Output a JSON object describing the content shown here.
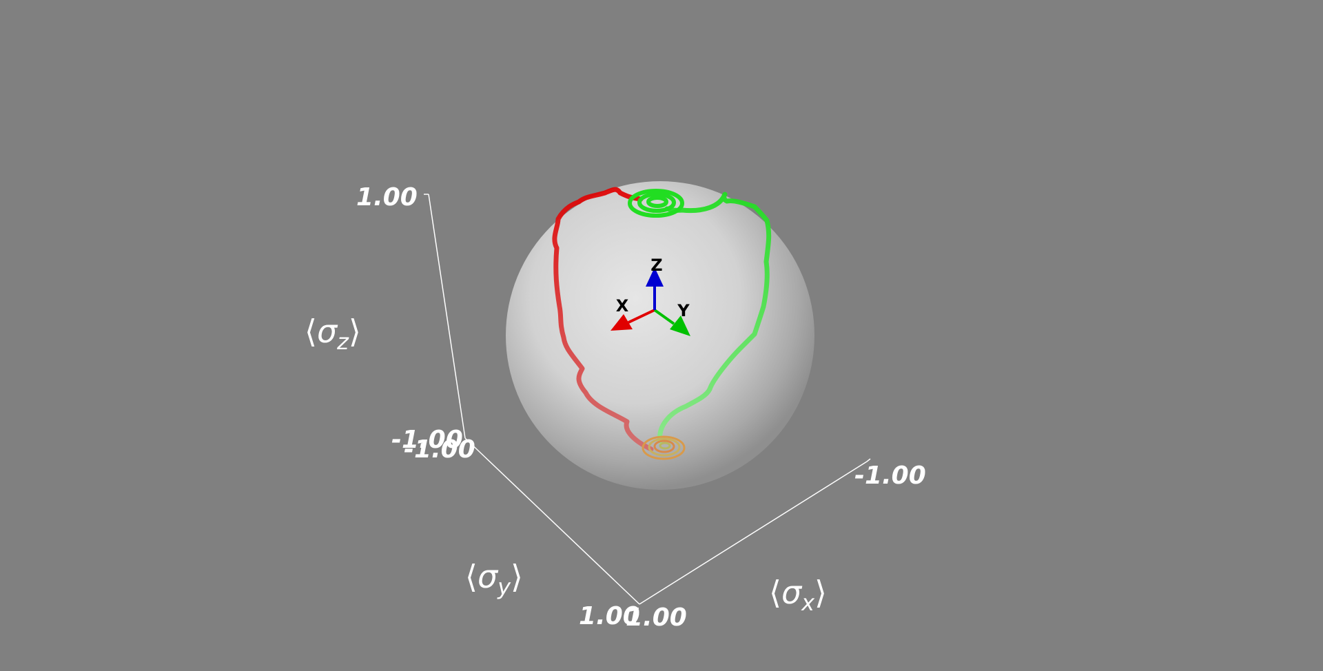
{
  "axes": {
    "z": {
      "title": "σ",
      "subscript": "z",
      "max_label": "1.00",
      "min_label": "-1.00"
    },
    "y": {
      "title": "σ",
      "subscript": "y",
      "min_label": "-1.00",
      "max_label": "1.00"
    },
    "x": {
      "title": "σ",
      "subscript": "x",
      "min_label": "-1.00",
      "max_label": "1.00"
    },
    "bracket_open": "⟨",
    "bracket_close": "⟩"
  },
  "orientation_triad": {
    "x_label": "X",
    "y_label": "Y",
    "z_label": "Z",
    "x_color": "#e00000",
    "y_color": "#00c000",
    "z_color": "#0000d0"
  },
  "trajectories": [
    {
      "name": "",
      "color": "#d9534f"
    },
    {
      "name": "",
      "color": "#5cd65c"
    }
  ],
  "colors": {
    "background": "#808080",
    "sphere": "#d4d4d4",
    "axis_lines": "#ffffff",
    "trajectory_red": "#d9534f",
    "trajectory_green": "#5cd65c"
  }
}
